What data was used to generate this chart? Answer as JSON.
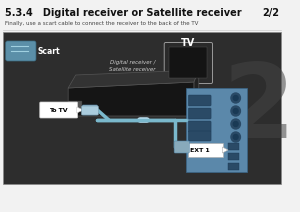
{
  "title": "5.3.4   Digital receiver or Satellite receiver",
  "page_num": "2/2",
  "subtitle": "Finally, use a scart cable to connect the receiver to the back of the TV",
  "bg_color": "#f2f2f2",
  "diagram_bg": "#2d2d2d",
  "scart_label": "Scart",
  "tv_label": "TV",
  "receiver_label": "Digital receiver /\nSatellite receiver",
  "to_tv_label": "To TV",
  "ext1_label": "EXT 1",
  "big_number": "2",
  "cable_color": "#7ab8cc",
  "tv_panel_color": "#5b88aa"
}
